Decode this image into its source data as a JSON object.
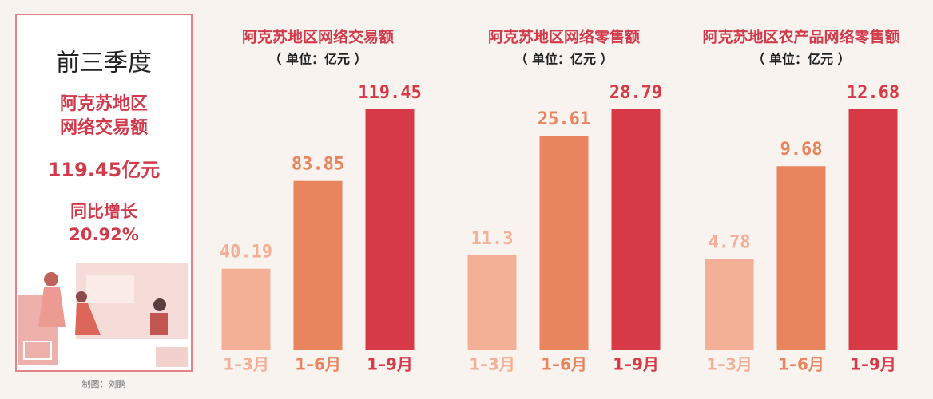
{
  "panel": {
    "period": "前三季度",
    "subject": [
      "阿克苏地区",
      "网络交易额"
    ],
    "amount": "119.45亿元",
    "growth_label": "同比增长",
    "growth": "20.92%"
  },
  "credit": "制图：刘鹏",
  "chart_data": [
    {
      "type": "bar",
      "title": "阿克苏地区网络交易额",
      "subtitle": "（ 单位：亿元 ）",
      "categories": [
        "1–3月",
        "1–6月",
        "1–9月"
      ],
      "values": [
        40.19,
        83.85,
        119.45
      ],
      "colors": [
        "#f4b096",
        "#e8855f",
        "#d63a47"
      ]
    },
    {
      "type": "bar",
      "title": "阿克苏地区网络零售额",
      "subtitle": "（ 单位：亿元 ）",
      "categories": [
        "1–3月",
        "1–6月",
        "1–9月"
      ],
      "values": [
        11.3,
        25.61,
        28.79
      ],
      "colors": [
        "#f4b096",
        "#e8855f",
        "#d63a47"
      ]
    },
    {
      "type": "bar",
      "title": "阿克苏地区农产品网络零售额",
      "subtitle": "（ 单位：亿元 ）",
      "categories": [
        "1–3月",
        "1–6月",
        "1–9月"
      ],
      "values": [
        4.78,
        9.68,
        12.68
      ],
      "colors": [
        "#f4b096",
        "#e8855f",
        "#d63a47"
      ]
    }
  ]
}
